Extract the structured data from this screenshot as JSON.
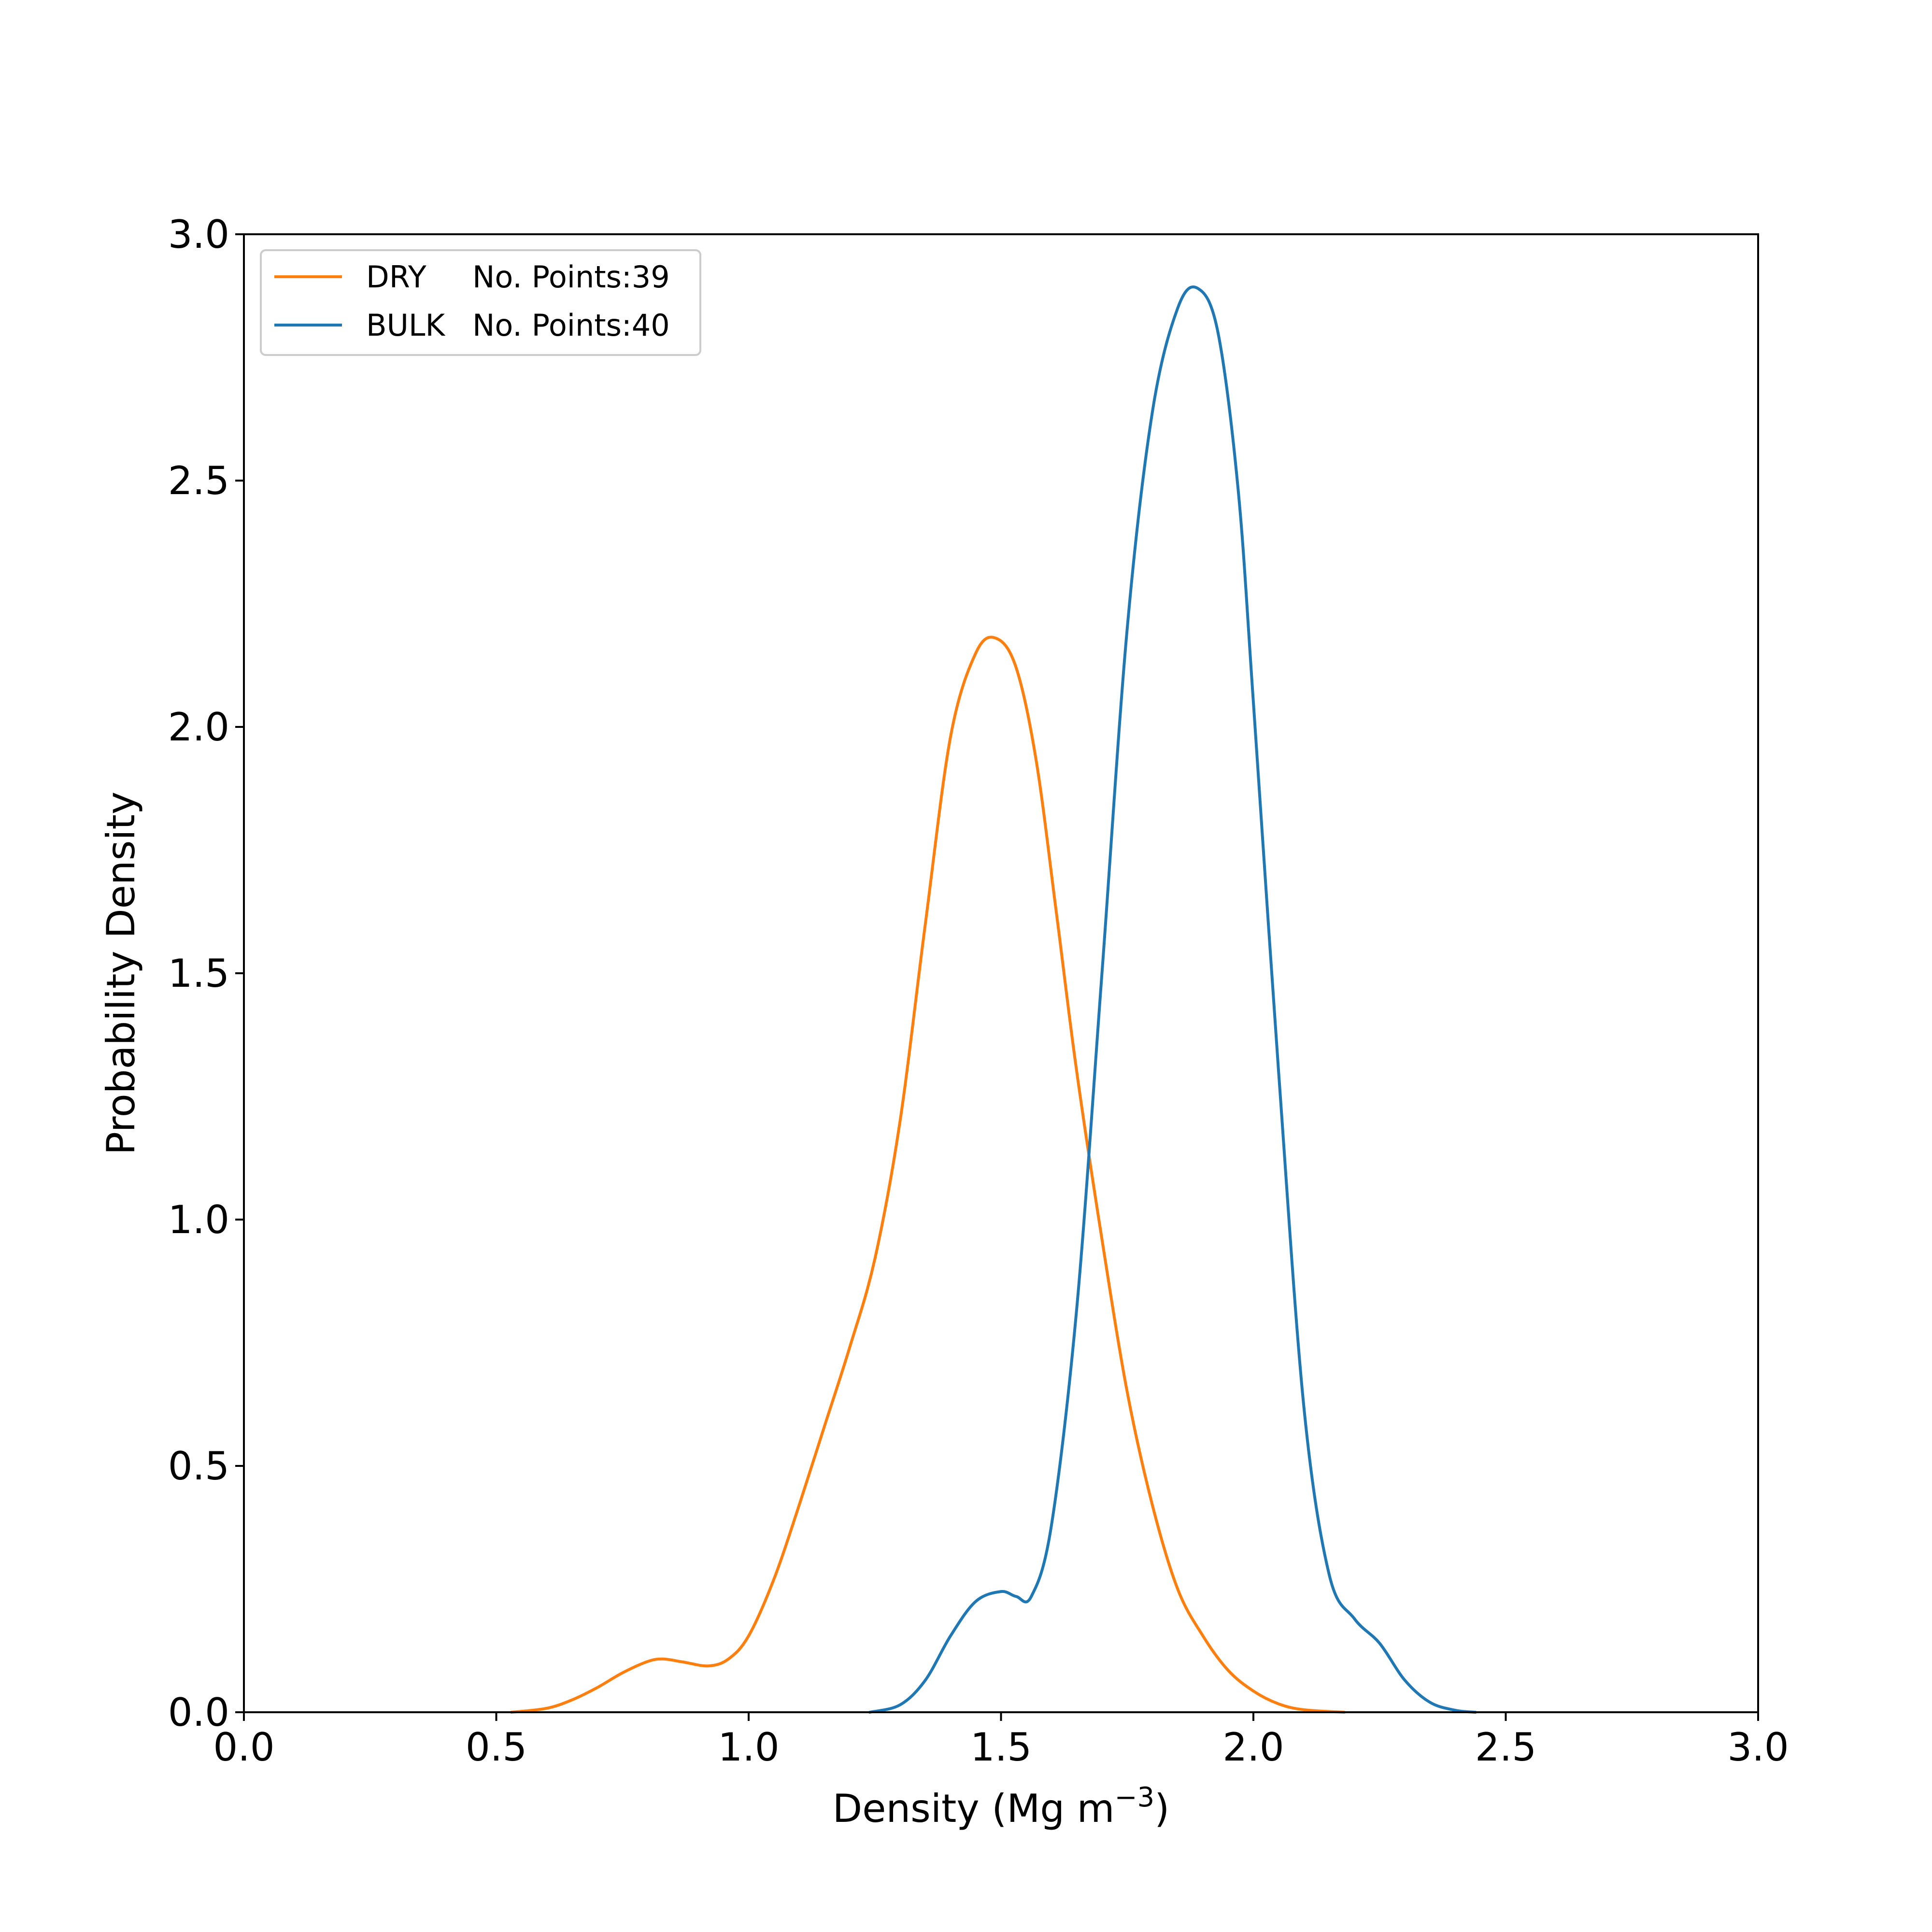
{
  "chart_data": {
    "type": "line",
    "title": "",
    "xlabel": "Density (Mg m",
    "xlabel_sup": "−3",
    "xlabel_close": ")",
    "ylabel": "Probability Density",
    "xlim": [
      0.0,
      3.0
    ],
    "ylim": [
      0.0,
      3.0
    ],
    "x_ticks": [
      0.0,
      0.5,
      1.0,
      1.5,
      2.0,
      2.5,
      3.0
    ],
    "x_tick_labels": [
      "0.0",
      "0.5",
      "1.0",
      "1.5",
      "2.0",
      "2.5",
      "3.0"
    ],
    "y_ticks": [
      0.0,
      0.5,
      1.0,
      1.5,
      2.0,
      2.5,
      3.0
    ],
    "y_tick_labels": [
      "0.0",
      "0.5",
      "1.0",
      "1.5",
      "2.0",
      "2.5",
      "3.0"
    ],
    "grid": false,
    "legend_position": "top-left",
    "series": [
      {
        "name": "DRY",
        "legend_count": "No. Points:39",
        "color": "#ff7f0e",
        "points": [
          [
            0.53,
            0.0
          ],
          [
            0.6,
            0.008
          ],
          [
            0.65,
            0.025
          ],
          [
            0.7,
            0.05
          ],
          [
            0.75,
            0.08
          ],
          [
            0.8,
            0.103
          ],
          [
            0.83,
            0.108
          ],
          [
            0.87,
            0.102
          ],
          [
            0.92,
            0.094
          ],
          [
            0.96,
            0.108
          ],
          [
            1.0,
            0.155
          ],
          [
            1.05,
            0.27
          ],
          [
            1.1,
            0.42
          ],
          [
            1.15,
            0.58
          ],
          [
            1.2,
            0.74
          ],
          [
            1.25,
            0.92
          ],
          [
            1.3,
            1.2
          ],
          [
            1.35,
            1.6
          ],
          [
            1.4,
            1.98
          ],
          [
            1.45,
            2.15
          ],
          [
            1.49,
            2.18
          ],
          [
            1.53,
            2.12
          ],
          [
            1.57,
            1.93
          ],
          [
            1.61,
            1.62
          ],
          [
            1.65,
            1.3
          ],
          [
            1.7,
            0.96
          ],
          [
            1.75,
            0.65
          ],
          [
            1.8,
            0.42
          ],
          [
            1.85,
            0.25
          ],
          [
            1.9,
            0.155
          ],
          [
            1.95,
            0.085
          ],
          [
            2.0,
            0.043
          ],
          [
            2.05,
            0.017
          ],
          [
            2.1,
            0.005
          ],
          [
            2.18,
            0.0
          ]
        ]
      },
      {
        "name": "BULK",
        "legend_count": "No. Points:40",
        "color": "#1f77b4",
        "points": [
          [
            1.24,
            0.0
          ],
          [
            1.3,
            0.015
          ],
          [
            1.35,
            0.065
          ],
          [
            1.4,
            0.155
          ],
          [
            1.45,
            0.225
          ],
          [
            1.5,
            0.245
          ],
          [
            1.53,
            0.235
          ],
          [
            1.56,
            0.235
          ],
          [
            1.6,
            0.38
          ],
          [
            1.65,
            0.82
          ],
          [
            1.7,
            1.5
          ],
          [
            1.75,
            2.2
          ],
          [
            1.8,
            2.64
          ],
          [
            1.85,
            2.85
          ],
          [
            1.89,
            2.89
          ],
          [
            1.93,
            2.8
          ],
          [
            1.97,
            2.48
          ],
          [
            2.0,
            2.05
          ],
          [
            2.05,
            1.3
          ],
          [
            2.1,
            0.62
          ],
          [
            2.15,
            0.28
          ],
          [
            2.2,
            0.19
          ],
          [
            2.25,
            0.14
          ],
          [
            2.3,
            0.065
          ],
          [
            2.35,
            0.02
          ],
          [
            2.4,
            0.004
          ],
          [
            2.44,
            0.0
          ]
        ]
      }
    ]
  }
}
